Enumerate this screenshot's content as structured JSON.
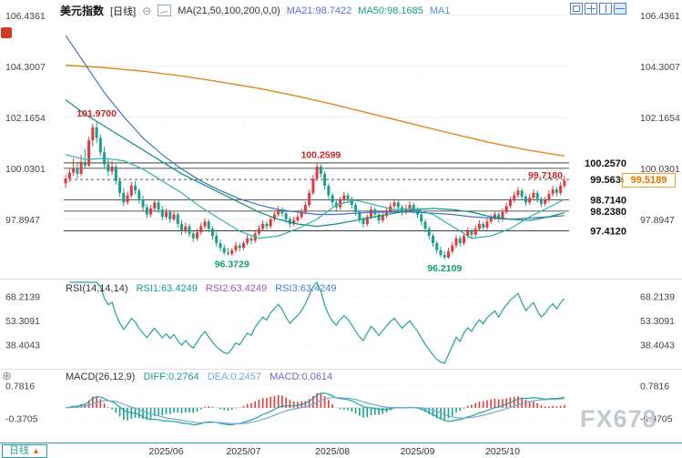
{
  "header": {
    "symbol": "美元指数",
    "timeframe_label": "[日线]",
    "collapse_glyph": "⊖",
    "ma_settings": "MA(21,50,100,200,0,0)",
    "ma21": "MA21:98.7422",
    "ma50": "MA50:98.1685",
    "ma_extra": "MA1"
  },
  "toolbar": {
    "button_icons": [
      "single-chart-layout-icon",
      "grid-2x2-layout-icon",
      "vertical-split-layout-icon",
      "horizontal-split-layout-icon"
    ]
  },
  "rsi_header": {
    "title": "RSI(14,14,14)",
    "rsi1": "RSI1:63.4249",
    "rsi2": "RSI2:63.4249",
    "rsi3": "RSI3:63.4249"
  },
  "macd_header": {
    "title": "MACD(26,12,9)",
    "diff": "DIFF:0.2764",
    "dea": "DEA:0.2457",
    "macd": "MACD:0.0614"
  },
  "price_badge": "99.5189",
  "bottom_bar": {
    "timeframe_tab": "日线",
    "arrow": "▲"
  },
  "watermark": "FX678",
  "tool_icon_glyph": "⊕",
  "colors": {
    "up": "#e23a3a",
    "down": "#18a08c",
    "ma21": "#2ab5a5",
    "ma50": "#0f8f7f",
    "ma100": "#3f6fc9",
    "ma200": "#e2861c",
    "rsi": "#1fa49b",
    "diff": "#1fa49b",
    "dea": "#6fa8dc"
  },
  "chart_data": {
    "type": "candlestick",
    "title": "美元指数 日线",
    "x_labels": [
      {
        "label": "2025/06",
        "index": 26
      },
      {
        "label": "2025/07",
        "index": 46
      },
      {
        "label": "2025/08",
        "index": 69
      },
      {
        "label": "2025/09",
        "index": 91
      },
      {
        "label": "2025/10",
        "index": 113
      }
    ],
    "main_panel": {
      "y_ticks": [
        106.4361,
        104.3007,
        102.1654,
        100.0301,
        97.8947
      ],
      "y_range": [
        95.45,
        106.7
      ],
      "levels": [
        {
          "value": 100.257,
          "style": "solid",
          "show_label": true
        },
        {
          "value": 100.0301,
          "style": "solid",
          "show_label": false
        },
        {
          "value": 99.563,
          "style": "dashed",
          "show_label": true
        },
        {
          "value": 98.714,
          "style": "solid",
          "show_label": true
        },
        {
          "value": 98.238,
          "style": "solid",
          "show_label": true
        },
        {
          "value": 97.412,
          "style": "solid",
          "show_label": true
        }
      ],
      "annotations": [
        {
          "text": "101.9700",
          "index": 8,
          "price": 102.05,
          "color": "#cc2222",
          "pos": "above"
        },
        {
          "text": "100.2599",
          "index": 66,
          "price": 100.32,
          "color": "#cc2222",
          "pos": "above"
        },
        {
          "text": "99.7180",
          "index": 129,
          "price": 99.72,
          "color": "#cc2222",
          "pos": "end"
        },
        {
          "text": "96.3729",
          "index": 43,
          "price": 96.34,
          "color": "#0e9e66",
          "pos": "below"
        },
        {
          "text": "96.2109",
          "index": 98,
          "price": 96.17,
          "color": "#0e9e66",
          "pos": "below"
        }
      ],
      "current_price": 99.5189,
      "candles": [
        [
          99.4,
          99.75,
          99.2,
          99.6
        ],
        [
          99.6,
          100.0,
          99.45,
          99.85
        ],
        [
          99.85,
          100.45,
          99.7,
          100.05
        ],
        [
          100.05,
          100.3,
          99.6,
          99.8
        ],
        [
          99.8,
          100.6,
          99.7,
          100.3
        ],
        [
          100.3,
          100.85,
          100.0,
          100.15
        ],
        [
          100.15,
          101.35,
          100.1,
          101.2
        ],
        [
          101.2,
          101.9,
          100.95,
          101.75
        ],
        [
          101.75,
          101.97,
          101.1,
          101.3
        ],
        [
          101.3,
          101.45,
          100.55,
          100.7
        ],
        [
          100.7,
          100.95,
          100.05,
          100.2
        ],
        [
          100.2,
          100.4,
          99.7,
          99.9
        ],
        [
          99.9,
          100.35,
          99.75,
          100.1
        ],
        [
          100.1,
          100.2,
          99.35,
          99.5
        ],
        [
          99.5,
          99.65,
          98.85,
          99.0
        ],
        [
          99.0,
          99.2,
          98.45,
          98.6
        ],
        [
          98.6,
          99.05,
          98.5,
          98.9
        ],
        [
          98.9,
          99.45,
          98.8,
          99.3
        ],
        [
          99.3,
          99.5,
          98.95,
          99.1
        ],
        [
          99.1,
          99.2,
          98.55,
          98.7
        ],
        [
          98.7,
          98.9,
          98.25,
          98.4
        ],
        [
          98.4,
          98.55,
          97.95,
          98.1
        ],
        [
          98.1,
          98.5,
          98.0,
          98.35
        ],
        [
          98.35,
          98.75,
          98.2,
          98.6
        ],
        [
          98.6,
          98.7,
          98.15,
          98.3
        ],
        [
          98.3,
          98.45,
          97.85,
          98.0
        ],
        [
          98.0,
          98.35,
          97.9,
          98.2
        ],
        [
          98.2,
          98.3,
          97.75,
          97.9
        ],
        [
          97.9,
          98.25,
          97.8,
          98.1
        ],
        [
          98.1,
          98.2,
          97.55,
          97.7
        ],
        [
          97.7,
          97.85,
          97.25,
          97.4
        ],
        [
          97.4,
          97.75,
          97.3,
          97.6
        ],
        [
          97.6,
          97.7,
          97.15,
          97.3
        ],
        [
          97.3,
          97.45,
          96.95,
          97.1
        ],
        [
          97.1,
          97.5,
          97.0,
          97.35
        ],
        [
          97.35,
          97.75,
          97.25,
          97.6
        ],
        [
          97.6,
          97.95,
          97.5,
          97.8
        ],
        [
          97.8,
          97.9,
          97.35,
          97.5
        ],
        [
          97.5,
          97.6,
          97.05,
          97.2
        ],
        [
          97.2,
          97.35,
          96.75,
          96.9
        ],
        [
          96.9,
          97.05,
          96.55,
          96.7
        ],
        [
          96.7,
          96.85,
          96.4,
          96.5
        ],
        [
          96.5,
          96.7,
          96.38,
          96.45
        ],
        [
          96.45,
          96.7,
          96.3729,
          96.6
        ],
        [
          96.6,
          96.95,
          96.5,
          96.8
        ],
        [
          96.8,
          96.9,
          96.55,
          96.7
        ],
        [
          96.7,
          97.0,
          96.6,
          96.9
        ],
        [
          96.9,
          97.25,
          96.8,
          97.1
        ],
        [
          97.1,
          97.2,
          96.85,
          97.0
        ],
        [
          97.0,
          97.4,
          96.9,
          97.3
        ],
        [
          97.3,
          97.65,
          97.2,
          97.5
        ],
        [
          97.5,
          97.85,
          97.4,
          97.7
        ],
        [
          97.7,
          97.8,
          97.45,
          97.6
        ],
        [
          97.6,
          98.0,
          97.5,
          97.9
        ],
        [
          97.9,
          98.25,
          97.8,
          98.1
        ],
        [
          98.1,
          98.45,
          98.0,
          98.3
        ],
        [
          98.3,
          98.4,
          98.0,
          98.15
        ],
        [
          98.15,
          98.25,
          97.75,
          97.9
        ],
        [
          97.9,
          98.0,
          97.55,
          97.7
        ],
        [
          97.7,
          98.0,
          97.6,
          97.85
        ],
        [
          97.85,
          98.15,
          97.75,
          98.0
        ],
        [
          98.0,
          98.35,
          97.9,
          98.2
        ],
        [
          98.2,
          98.65,
          98.1,
          98.5
        ],
        [
          98.5,
          99.15,
          98.4,
          99.0
        ],
        [
          99.0,
          99.75,
          98.9,
          99.6
        ],
        [
          99.6,
          100.2599,
          99.5,
          100.1
        ],
        [
          100.1,
          100.2,
          99.65,
          99.8
        ],
        [
          99.8,
          99.9,
          99.15,
          99.3
        ],
        [
          99.3,
          99.4,
          98.75,
          98.9
        ],
        [
          98.9,
          99.0,
          98.45,
          98.6
        ],
        [
          98.6,
          98.75,
          98.25,
          98.4
        ],
        [
          98.4,
          98.85,
          98.3,
          98.7
        ],
        [
          98.7,
          99.05,
          98.6,
          98.9
        ],
        [
          98.9,
          99.0,
          98.6,
          98.75
        ],
        [
          98.75,
          98.85,
          98.35,
          98.5
        ],
        [
          98.5,
          98.6,
          98.05,
          98.2
        ],
        [
          98.2,
          98.3,
          97.75,
          97.9
        ],
        [
          97.9,
          98.0,
          97.55,
          97.7
        ],
        [
          97.7,
          98.1,
          97.6,
          98.0
        ],
        [
          98.0,
          98.45,
          97.9,
          98.3
        ],
        [
          98.3,
          98.4,
          97.95,
          98.1
        ],
        [
          98.1,
          98.2,
          97.7,
          97.85
        ],
        [
          97.85,
          98.2,
          97.75,
          98.05
        ],
        [
          98.05,
          98.4,
          97.95,
          98.25
        ],
        [
          98.25,
          98.6,
          98.15,
          98.45
        ],
        [
          98.45,
          98.75,
          98.35,
          98.6
        ],
        [
          98.6,
          98.7,
          98.25,
          98.4
        ],
        [
          98.4,
          98.5,
          98.05,
          98.2
        ],
        [
          98.2,
          98.5,
          98.1,
          98.35
        ],
        [
          98.35,
          98.65,
          98.25,
          98.5
        ],
        [
          98.5,
          98.6,
          98.15,
          98.3
        ],
        [
          98.3,
          98.4,
          97.95,
          98.1
        ],
        [
          98.1,
          98.2,
          97.65,
          97.8
        ],
        [
          97.8,
          97.9,
          97.35,
          97.5
        ],
        [
          97.5,
          97.6,
          97.05,
          97.2
        ],
        [
          97.2,
          97.3,
          96.75,
          96.9
        ],
        [
          96.9,
          97.0,
          96.45,
          96.6
        ],
        [
          96.6,
          96.75,
          96.3,
          96.4
        ],
        [
          96.4,
          96.55,
          96.2109,
          96.3
        ],
        [
          96.3,
          96.7,
          96.25,
          96.55
        ],
        [
          96.55,
          96.95,
          96.45,
          96.8
        ],
        [
          96.8,
          97.25,
          96.7,
          97.1
        ],
        [
          97.1,
          97.2,
          96.75,
          96.9
        ],
        [
          96.9,
          97.35,
          96.8,
          97.2
        ],
        [
          97.2,
          97.55,
          97.1,
          97.4
        ],
        [
          97.4,
          97.5,
          97.1,
          97.25
        ],
        [
          97.25,
          97.65,
          97.15,
          97.5
        ],
        [
          97.5,
          97.85,
          97.4,
          97.7
        ],
        [
          97.7,
          97.8,
          97.4,
          97.55
        ],
        [
          97.55,
          97.95,
          97.45,
          97.8
        ],
        [
          97.8,
          98.1,
          97.7,
          97.95
        ],
        [
          97.95,
          98.25,
          97.85,
          98.1
        ],
        [
          98.1,
          98.2,
          97.75,
          97.9
        ],
        [
          97.9,
          98.35,
          97.8,
          98.2
        ],
        [
          98.2,
          98.6,
          98.1,
          98.45
        ],
        [
          98.45,
          98.85,
          98.35,
          98.7
        ],
        [
          98.7,
          99.05,
          98.6,
          98.9
        ],
        [
          98.9,
          99.25,
          98.8,
          99.1
        ],
        [
          99.1,
          99.2,
          98.7,
          98.85
        ],
        [
          98.85,
          98.95,
          98.45,
          98.6
        ],
        [
          98.6,
          98.95,
          98.5,
          98.8
        ],
        [
          98.8,
          99.15,
          98.7,
          99.0
        ],
        [
          99.0,
          99.1,
          98.6,
          98.75
        ],
        [
          98.75,
          98.85,
          98.4,
          98.55
        ],
        [
          98.55,
          98.85,
          98.45,
          98.7
        ],
        [
          98.7,
          99.1,
          98.6,
          98.95
        ],
        [
          98.95,
          99.3,
          98.85,
          99.15
        ],
        [
          99.15,
          99.25,
          98.85,
          99.0
        ],
        [
          99.0,
          99.45,
          98.9,
          99.3
        ],
        [
          99.3,
          99.718,
          99.2,
          99.5189
        ]
      ],
      "ma_sampled": {
        "step": 5,
        "ma21": [
          100.6,
          100.4,
          100.45,
          100.35,
          100.0,
          99.5,
          99.0,
          98.4,
          97.9,
          97.4,
          97.1,
          97.2,
          97.5,
          97.9,
          98.5,
          98.7,
          98.5,
          98.3,
          98.35,
          98.1,
          97.6,
          97.1,
          97.2,
          97.5,
          98.0,
          98.4,
          98.74
        ],
        "ma50": [
          102.9,
          102.3,
          101.8,
          101.3,
          100.8,
          100.3,
          99.8,
          99.4,
          99.0,
          98.6,
          98.2,
          97.9,
          97.7,
          97.6,
          97.7,
          97.85,
          98.0,
          98.15,
          98.3,
          98.35,
          98.3,
          98.2,
          98.0,
          97.9,
          97.85,
          98.0,
          98.17
        ],
        "ma100": [
          105.6,
          104.4,
          103.2,
          102.2,
          101.3,
          100.6,
          100.0,
          99.5,
          99.1,
          98.75,
          98.5,
          98.3,
          98.2,
          98.1,
          98.1,
          98.15,
          98.2,
          98.2,
          98.2,
          98.15,
          98.1,
          98.0,
          97.95,
          97.9,
          97.95,
          98.0,
          98.05
        ]
      },
      "ma200": {
        "step": 10,
        "values": [
          104.35,
          104.25,
          104.1,
          103.9,
          103.65,
          103.38,
          103.05,
          102.68,
          102.28,
          101.88,
          101.48,
          101.1,
          100.78,
          100.55
        ]
      }
    },
    "rsi_panel": {
      "y_ticks": [
        68.2139,
        53.3091,
        38.4043
      ],
      "y_range": [
        25,
        77
      ],
      "period": 14
    },
    "macd_panel": {
      "y_ticks": [
        0.7816,
        -0.3705
      ],
      "y_range": [
        -1.1,
        1.28
      ],
      "fast": 12,
      "slow": 26,
      "signal": 9
    }
  }
}
